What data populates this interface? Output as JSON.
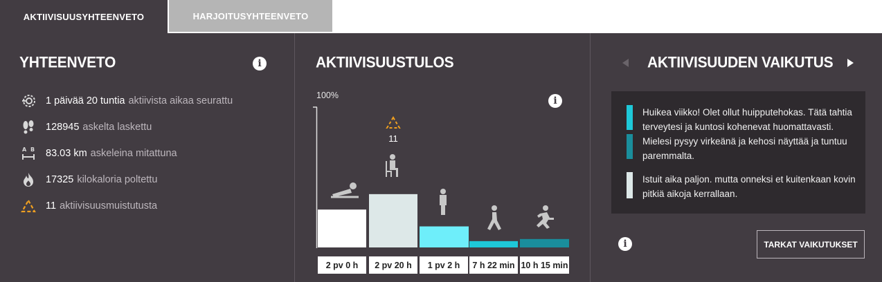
{
  "tabs": [
    {
      "label": "AKTIIVISUUSYHTEENVETO",
      "active": true
    },
    {
      "label": "HARJOITUSYHTEENVETO",
      "active": false
    }
  ],
  "summary": {
    "title": "YHTEENVETO",
    "info_glyph": "i",
    "items": [
      {
        "icon": "activity-tracking-icon",
        "value": "1 päivää 20 tuntia",
        "label": "aktiivista aikaa seurattu"
      },
      {
        "icon": "footprints-icon",
        "value": "128945",
        "label": "askelta laskettu"
      },
      {
        "icon": "distance-ab-icon",
        "value": "83.03 km",
        "label": "askeleina mitattuna"
      },
      {
        "icon": "flame-icon",
        "value": "17325",
        "label": "kilokaloria poltettu"
      },
      {
        "icon": "inactivity-alert-icon",
        "value": "11",
        "label": "aktiivisuusmuistutusta"
      }
    ]
  },
  "activity_result": {
    "title": "AKTIIVISUUSTULOS",
    "info_glyph": "i",
    "y_max_label": "100%",
    "alert_count": "11",
    "colors": {
      "lying": "#ffffff",
      "sitting": "#dde8e8",
      "standing": "#6eeefa",
      "walking": "#1ec8d8",
      "running": "#1a8e9c",
      "alert": "#f0a020"
    }
  },
  "chart_data": {
    "type": "bar",
    "categories": [
      "2 pv 0 h",
      "2 pv 20 h",
      "1 pv 2 h",
      "7 h 22 min",
      "10 h 15 min"
    ],
    "category_icons": [
      "lying-icon",
      "sitting-icon",
      "standing-icon",
      "walking-icon",
      "running-icon"
    ],
    "values": [
      27,
      38,
      15,
      4.5,
      6
    ],
    "ylim": [
      0,
      100
    ],
    "y_max_label": "100%",
    "annotations": [
      {
        "category": "2 pv 20 h",
        "text": "11",
        "icon": "inactivity-alert-icon"
      }
    ]
  },
  "impact": {
    "title": "AKTIIVISUUDEN VAIKUTUS",
    "messages": [
      {
        "text": "Huikea viikko! Olet ollut huipputehokas. Tätä tahtia terveytesi ja kuntosi kohenevat huomattavasti.",
        "color": "#1ec8d8"
      },
      {
        "text": "Mielesi pysyy virkeänä ja kehosi näyttää ja tuntuu paremmalta.",
        "color": "#1a8e9c"
      },
      {
        "text": "Istuit aika paljon. mutta onneksi et kuitenkaan kovin pitkiä aikoja kerrallaan.",
        "color": "#dde8e8"
      }
    ],
    "info_glyph": "i",
    "details_label": "TARKAT VAIKUTUKSET"
  }
}
